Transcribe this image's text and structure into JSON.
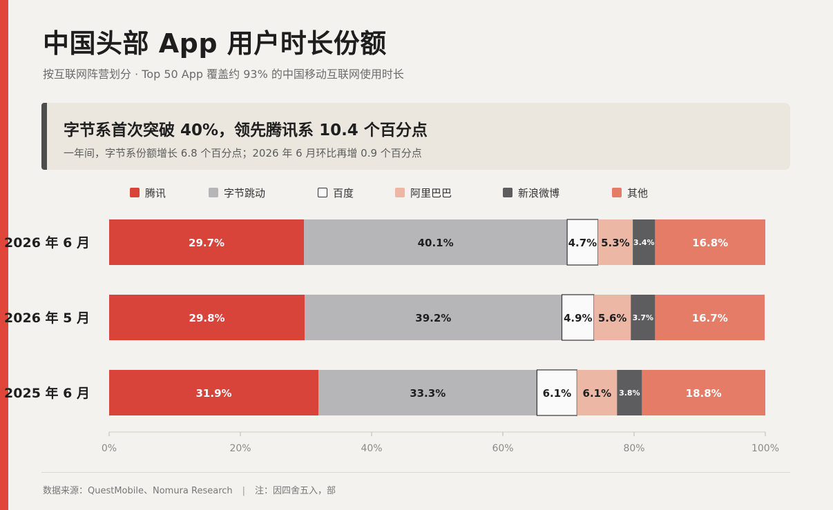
{
  "title": "中国头部 App 用户时长份额",
  "subtitle": "按互联网阵营划分 · Top 50 App 覆盖约 93% 的中国移动互联网使用时长",
  "callout": {
    "headline": "字节系首次突破 40%，领先腾讯系 10.4 个百分点",
    "sub": "一年间，字节系份额增长 6.8 个百分点；2026 年 6 月环比再增 0.9 个百分点"
  },
  "footer": {
    "source": "数据来源：QuestMobile、Nomura Research",
    "separator": "|",
    "note": "注：因四舍五入，部"
  },
  "colors": {
    "tencent": "#d9443a",
    "bytedance": "#b6b6b8",
    "baidu": "#fafafa",
    "alibaba": "#edb7a5",
    "weibo": "#5d5d5f",
    "other": "#e47c68"
  },
  "chart_data": {
    "type": "bar",
    "orientation": "horizontal",
    "stacked": true,
    "categories": [
      "2026 年 6 月",
      "2026 年 5 月",
      "2025 年 6 月"
    ],
    "series": [
      {
        "name": "腾讯",
        "values": [
          29.7,
          29.8,
          31.9
        ],
        "labels": [
          "29.7%",
          "29.8%",
          "31.9%"
        ]
      },
      {
        "name": "字节跳动",
        "values": [
          40.1,
          39.2,
          33.3
        ],
        "labels": [
          "40.1%",
          "39.2%",
          "33.3%"
        ]
      },
      {
        "name": "百度",
        "values": [
          4.7,
          4.9,
          6.1
        ],
        "labels": [
          "4.7%",
          "4.9%",
          "6.1%"
        ]
      },
      {
        "name": "阿里巴巴",
        "values": [
          5.3,
          5.6,
          6.1
        ],
        "labels": [
          "5.3%",
          "5.6%",
          "6.1%"
        ]
      },
      {
        "name": "新浪微博",
        "values": [
          3.4,
          3.7,
          3.8
        ],
        "labels": [
          "3.4%",
          "3.7%",
          "3.8%"
        ]
      },
      {
        "name": "其他",
        "values": [
          16.8,
          16.7,
          18.8
        ],
        "labels": [
          "16.8%",
          "16.7%",
          "18.8%"
        ]
      }
    ],
    "xlim": [
      0,
      100
    ],
    "xticks": [
      "0%",
      "20%",
      "40%",
      "60%",
      "80%",
      "100%"
    ],
    "legend_position": "top",
    "grid": true
  }
}
